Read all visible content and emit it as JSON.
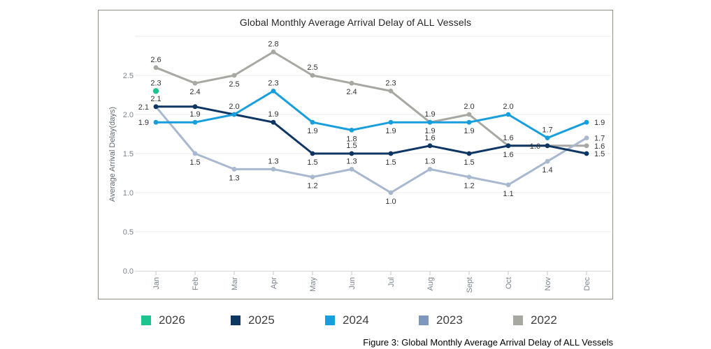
{
  "caption": "Figure 3: Global Monthly Average Arrival Delay of ALL Vessels",
  "card": {
    "border_color": "#8f8f86",
    "background": "#ffffff"
  },
  "chart_data": {
    "type": "line",
    "title": "Global Monthly Average Arrival Delay of ALL Vessels",
    "xlabel": "",
    "ylabel": "Average Arrival Delay(days)",
    "categories": [
      "Jan",
      "Feb",
      "Mar",
      "Apr",
      "May",
      "Jun",
      "Jul",
      "Aug",
      "Sept",
      "Oct",
      "Nov",
      "Dec"
    ],
    "x_tick_rotation": -90,
    "y_ticks": [
      "0.0",
      "0.5",
      "1.0",
      "1.5",
      "2.0",
      "2.5"
    ],
    "ylim": [
      0,
      3.05
    ],
    "grid": true,
    "grid_color": "#ebebeb",
    "axis_text_color": "#7e838b",
    "label_text_color": "#333333",
    "legend_position": "bottom",
    "series": [
      {
        "name": "2026",
        "color": "#1ec490",
        "values": [
          2.3,
          null,
          null,
          null,
          null,
          null,
          null,
          null,
          null,
          null,
          null,
          null
        ],
        "label_anchors": [
          "a",
          "",
          "",
          "",
          "",
          "",
          "",
          "",
          "",
          "",
          "",
          ""
        ]
      },
      {
        "name": "2025",
        "color": "#0e3663",
        "values": [
          2.1,
          2.1,
          2.0,
          1.9,
          1.5,
          1.5,
          1.5,
          1.6,
          1.5,
          1.6,
          1.6,
          1.5
        ],
        "label_anchors": [
          "a",
          "h",
          "a",
          "a",
          "b",
          "a",
          "b",
          "a",
          "b",
          "b",
          "h",
          "r"
        ]
      },
      {
        "name": "2024",
        "color": "#179edc",
        "values": [
          1.9,
          1.9,
          2.0,
          2.3,
          1.9,
          1.8,
          1.9,
          1.9,
          1.9,
          2.0,
          1.7,
          1.9
        ],
        "label_anchors": [
          "l",
          "a",
          "h",
          "a",
          "b",
          "b",
          "b",
          "a",
          "b",
          "a",
          "a",
          "r"
        ]
      },
      {
        "name": "2023",
        "color": "#a8b8cf",
        "legend_color": "#7e98bd",
        "values": [
          2.1,
          1.5,
          1.3,
          1.3,
          1.2,
          1.3,
          1.0,
          1.3,
          1.2,
          1.1,
          1.4,
          1.7
        ],
        "label_anchors": [
          "l",
          "b",
          "b",
          "a",
          "b",
          "a",
          "b",
          "a",
          "b",
          "b",
          "b",
          "r"
        ]
      },
      {
        "name": "2022",
        "color": "#a8a8a2",
        "values": [
          2.6,
          2.4,
          2.5,
          2.8,
          2.5,
          2.4,
          2.3,
          1.9,
          2.0,
          1.6,
          1.6,
          1.6
        ],
        "label_anchors": [
          "a",
          "b",
          "b",
          "a",
          "a",
          "b",
          "a",
          "b",
          "a",
          "a",
          "l",
          "r"
        ]
      }
    ]
  }
}
